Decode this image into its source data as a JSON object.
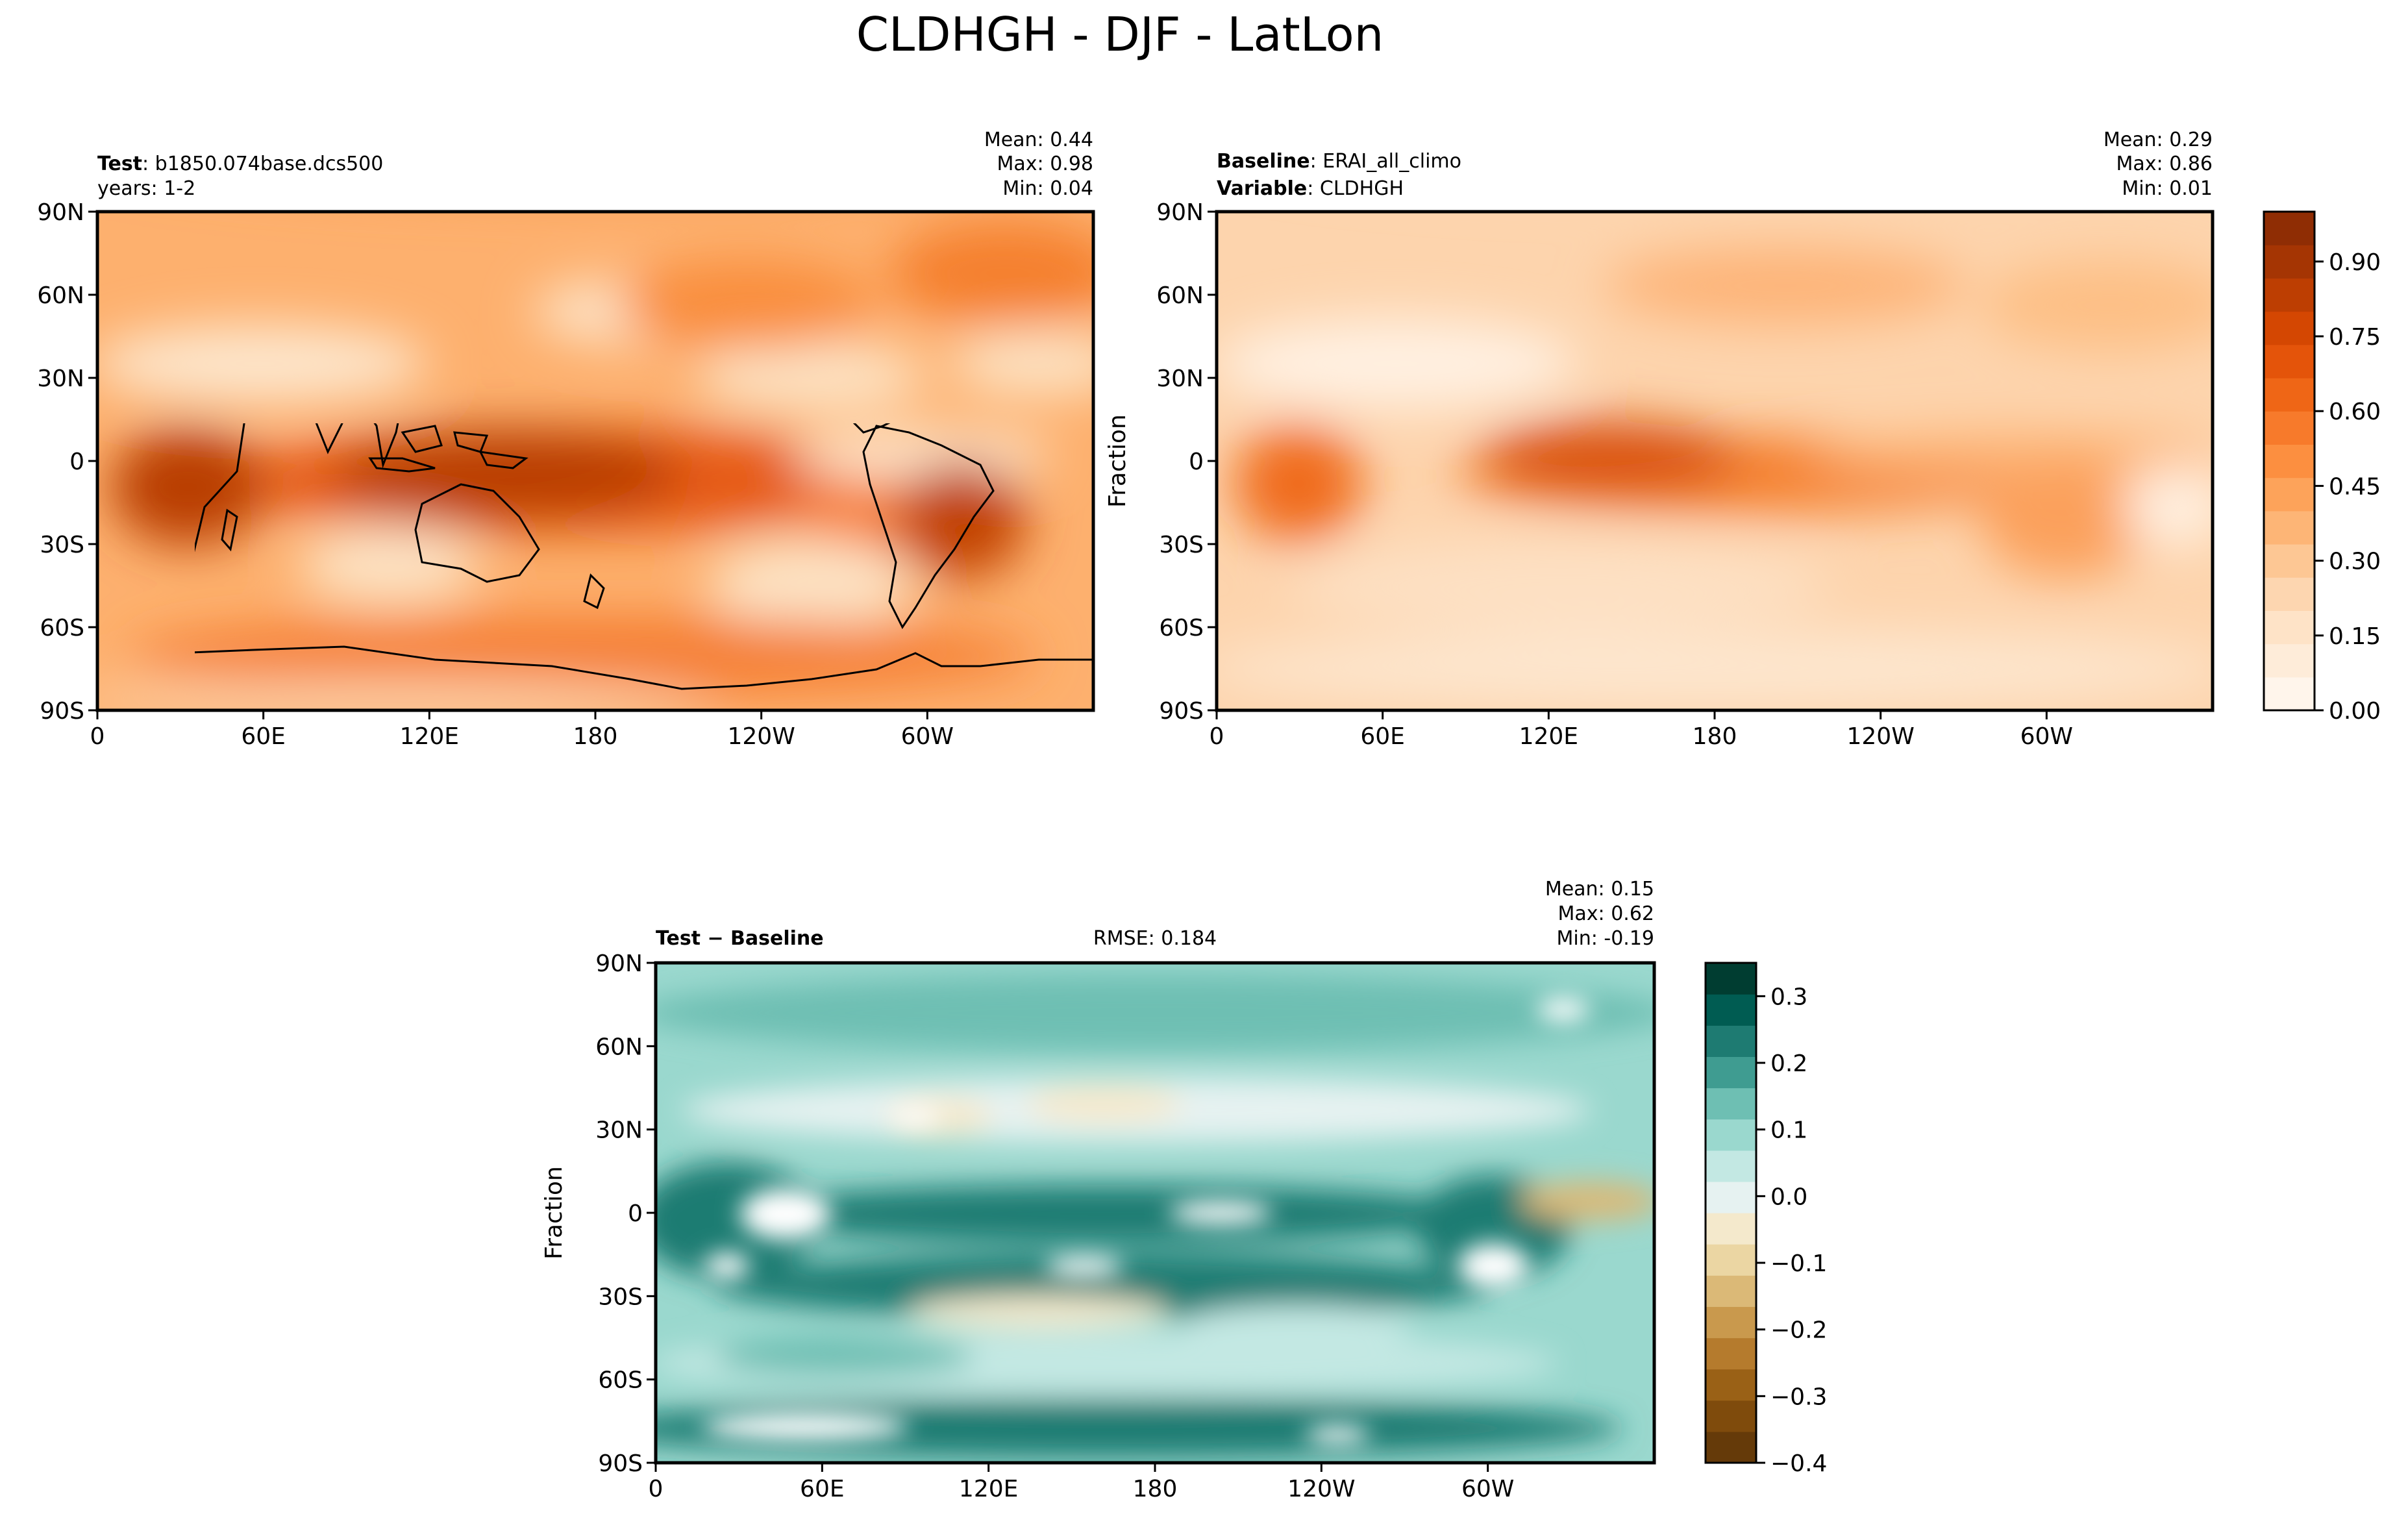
{
  "figure": {
    "title": "CLDHGH - DJF - LatLon"
  },
  "panels": {
    "test": {
      "label_bold": "Test",
      "label_rest": ": b1850.074base.dcs500",
      "label2": "years: 1-2",
      "stats": [
        "Mean:  0.44",
        "Max:  0.98",
        "Min:  0.04"
      ]
    },
    "baseline": {
      "label_bold": "Baseline",
      "label_rest": ": ERAI_all_climo",
      "label2_bold": "Variable",
      "label2_rest": ": CLDHGH",
      "ylabel": "Fraction",
      "stats": [
        "Mean:  0.29",
        "Max:  0.86",
        "Min:  0.01"
      ]
    },
    "diff": {
      "label": "Test − Baseline",
      "rmse": "RMSE: 0.184",
      "ylabel": "Fraction",
      "stats": [
        "Mean:  0.15",
        "Max:  0.62",
        "Min: -0.19"
      ]
    }
  },
  "axes": {
    "x_ticks": [
      "0",
      "60E",
      "120E",
      "180",
      "120W",
      "60W"
    ],
    "y_ticks": [
      "90N",
      "60N",
      "30N",
      "0",
      "30S",
      "60S",
      "90S"
    ]
  },
  "colorbars": {
    "main": {
      "ticks": [
        "0.00",
        "0.15",
        "0.30",
        "0.45",
        "0.60",
        "0.75",
        "0.90"
      ],
      "colors": [
        "#fff5eb",
        "#feecd9",
        "#fee3c7",
        "#fdd6b0",
        "#fdc794",
        "#fdb576",
        "#fda35a",
        "#fc8f40",
        "#f77a2b",
        "#ef6616",
        "#e4540a",
        "#d44702",
        "#bd3e02",
        "#a53503",
        "#8f2d04"
      ]
    },
    "diff": {
      "ticks": [
        "0.3",
        "0.2",
        "0.1",
        "0.0",
        "−0.1",
        "−0.2",
        "−0.3",
        "−0.4"
      ],
      "colors": [
        "#653a09",
        "#7f4b0c",
        "#9a6116",
        "#b57b2d",
        "#c9994d",
        "#dbb977",
        "#ebd6a3",
        "#f4e9cc",
        "#e6f2f1",
        "#c3e8e3",
        "#9ad8ce",
        "#6ebfb3",
        "#3f9c91",
        "#1e7b72",
        "#005c52",
        "#003d31"
      ]
    }
  },
  "chart_data": [
    {
      "type": "heatmap",
      "title": "Test: b1850.074base.dcs500",
      "subtitle": "years: 1-2",
      "x_ticks": [
        "0",
        "60E",
        "120E",
        "180",
        "120W",
        "60W"
      ],
      "y_ticks": [
        "90N",
        "60N",
        "30N",
        "0",
        "30S",
        "60S",
        "90S"
      ],
      "xlim": [
        0,
        360
      ],
      "ylim": [
        -90,
        90
      ],
      "value_range": [
        0.0,
        1.0
      ],
      "stats": {
        "mean": 0.44,
        "max": 0.98,
        "min": 0.04
      },
      "features": [
        {
          "lon": 140,
          "lat": -5,
          "value": 0.85
        },
        {
          "lon": 30,
          "lat": -10,
          "value": 0.8
        },
        {
          "lon": 300,
          "lat": -10,
          "value": 0.8
        }
      ]
    },
    {
      "type": "heatmap",
      "title": "Baseline: ERAI_all_climo",
      "subtitle": "Variable: CLDHGH",
      "ylabel": "Fraction",
      "x_ticks": [
        "0",
        "60E",
        "120E",
        "180",
        "120W",
        "60W"
      ],
      "y_ticks": [
        "90N",
        "60N",
        "30N",
        "0",
        "30S",
        "60S",
        "90S"
      ],
      "xlim": [
        0,
        360
      ],
      "ylim": [
        -90,
        90
      ],
      "value_range": [
        0.0,
        1.0
      ],
      "stats": {
        "mean": 0.29,
        "max": 0.86,
        "min": 0.01
      },
      "features": [
        {
          "lon": 120,
          "lat": 0,
          "value": 0.75
        },
        {
          "lon": 20,
          "lat": -5,
          "value": 0.6
        },
        {
          "lon": 300,
          "lat": -8,
          "value": 0.5
        }
      ]
    },
    {
      "type": "heatmap",
      "title": "Test − Baseline",
      "ylabel": "Fraction",
      "rmse": 0.184,
      "x_ticks": [
        "0",
        "60E",
        "120E",
        "180",
        "120W",
        "60W"
      ],
      "y_ticks": [
        "90N",
        "60N",
        "30N",
        "0",
        "30S",
        "60S",
        "90S"
      ],
      "xlim": [
        0,
        360
      ],
      "ylim": [
        -90,
        90
      ],
      "value_range": [
        -0.4,
        0.35
      ],
      "stats": {
        "mean": 0.15,
        "max": 0.62,
        "min": -0.19
      },
      "features": [
        {
          "lon": 30,
          "lat": 0,
          "value": 0.4
        },
        {
          "lon": 215,
          "lat": 0,
          "value": 0.4
        },
        {
          "lon": 305,
          "lat": -15,
          "value": 0.4
        },
        {
          "lon": 340,
          "lat": 5,
          "value": -0.15
        }
      ]
    }
  ]
}
